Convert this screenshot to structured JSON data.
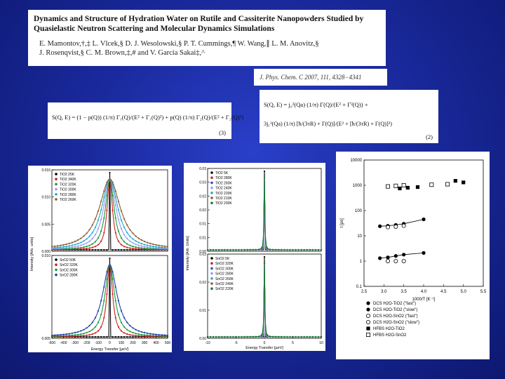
{
  "header": {
    "title": "Dynamics and Structure of Hydration Water on Rutile and Cassiterite Nanopowders Studied by Quasielastic Neutron Scattering and Molecular Dynamics Simulations",
    "authors_line1": "E. Mamontov,†,‡ L. Vlcek,§ D. J. Wesolowski,§ P. T. Cummings,¶ W. Wang,∥ L. M. Anovitz,§",
    "authors_line2": "J. Rosenqvist,§ C. M. Brown,‡,# and V. Garcia Sakai‡,^",
    "citation": "J. Phys. Chem. C 2007, 111, 4328−4341"
  },
  "equations": {
    "eq3_text": "S(Q, E) = (1 − p(Q)) (1/π) Γ₁(Q)/(E² + Γ₁(Q)²) + p(Q) (1/π) Γ₂(Q)/(E² + Γ₂(Q)²)",
    "eq3_number": "(3)",
    "eq2_line1": "S(Q, E) = j₀²(Qa) (1/π) Γ(Q)/(E² + Γ²(Q)) +",
    "eq2_line2": "3j₁²(Qa) (1/π) [ħ/(3τR) + Γ(Q)]/(E² + [ħ/(3τR) + Γ(Q)]²)",
    "eq2_number": "(2)"
  },
  "chart_data": [
    {
      "type": "line",
      "panel": "TiO2/SnO2 left",
      "xlabel": "Energy Transfer [µeV]",
      "ylabel": "Intensity [Arb. units]",
      "xticks": [
        -500,
        -400,
        -300,
        -200,
        -100,
        0,
        100,
        200,
        300,
        400,
        500
      ],
      "upper": {
        "ylim": [
          0,
          0.016
        ],
        "yticks": [
          "0.016",
          "0.010",
          "0.005",
          "0.000"
        ],
        "legend": [
          "TiO2 25K",
          "TiO2 340K",
          "TiO2 320K",
          "TiO2 300K",
          "TiO2 280K",
          "TiO2 260K"
        ],
        "colors": [
          "#000000",
          "#cc2222",
          "#1a9a3a",
          "#9999ff",
          "#22aacc",
          "#8b5a2b"
        ],
        "widths": [
          2,
          28,
          45,
          65,
          85,
          110
        ]
      },
      "lower": {
        "legend": [
          "SnO2 50K",
          "SnO2 320K",
          "SnO2 300K",
          "SnO2 280K"
        ],
        "colors": [
          "#000000",
          "#cc2222",
          "#1a9a3a",
          "#1e3fa8"
        ],
        "yticks": [
          "0.010",
          "0.005"
        ],
        "widths": [
          2,
          30,
          50,
          75
        ]
      }
    },
    {
      "type": "line",
      "panel": "TiO2/SnO2 middle",
      "xlabel": "Energy Transfer [µeV]",
      "ylabel": "Intensity [Arb. Units]",
      "xticks": [
        -10,
        -5,
        0,
        5,
        10
      ],
      "upper": {
        "yticks": [
          "0.03",
          "0.03",
          "0.02",
          "0.02",
          "0.01",
          "0.01",
          "0.00"
        ],
        "legend": [
          "TiO2 5K",
          "TiO2 280K",
          "TiO2 260K",
          "TiO2 240K",
          "TiO2 220K",
          "TiO2 210K",
          "TiO2 200K"
        ],
        "colors": [
          "#000000",
          "#cc2222",
          "#2a4fd0",
          "#9999ff",
          "#22aacc",
          "#8b5a2b",
          "#1a7a3a"
        ],
        "widths": [
          0.5,
          1.0,
          1.5,
          2.1,
          2.8,
          3.4,
          4.2
        ]
      },
      "lower": {
        "yticks": [
          "0.03",
          "0.02",
          "0.01",
          "0.00"
        ],
        "legend": [
          "SnO2 5K",
          "SnO2 320K",
          "SnO2 300K",
          "SnO2 280K",
          "SnO2 260K",
          "SnO2 240K",
          "SnO2 220K"
        ],
        "colors": [
          "#000000",
          "#cc2222",
          "#2a4fd0",
          "#9999ff",
          "#22aacc",
          "#8b5a2b",
          "#1a7a3a"
        ],
        "widths": [
          0.5,
          1.0,
          1.5,
          2.1,
          2.8,
          3.4,
          4.2
        ]
      }
    },
    {
      "type": "scatter",
      "panel": "Arrhenius",
      "xlabel": "1000/T [K⁻¹]",
      "ylabel": "τ [ps]",
      "xlim": [
        2.5,
        5.5
      ],
      "xticks": [
        "2.5",
        "3.0",
        "3.5",
        "4.0",
        "4.5",
        "5.0",
        "5.5"
      ],
      "ylim_log": [
        0.1,
        10000
      ],
      "yticks": [
        "10000",
        "1000",
        "100",
        "10",
        "1",
        "0.1"
      ],
      "series": [
        {
          "name": "DCS H2O-TiO2 (\"fast\")",
          "marker": "filled-circle",
          "x": [
            2.9,
            3.1,
            3.3,
            3.5,
            4.0
          ],
          "y": [
            1.3,
            1.4,
            1.6,
            1.8,
            2.1
          ]
        },
        {
          "name": "DCS H2O-TiO2 (\"slow\")",
          "marker": "filled-circle",
          "x": [
            2.9,
            3.1,
            3.3,
            3.5,
            4.0
          ],
          "y": [
            24,
            25,
            27,
            30,
            45
          ]
        },
        {
          "name": "DCS H2O-SnO2 (\"fast\")",
          "marker": "open-circle",
          "x": [
            3.1,
            3.3,
            3.5
          ],
          "y": [
            1.0,
            1.0,
            1.0
          ]
        },
        {
          "name": "DCS H2O-SnO2 (\"slow\")",
          "marker": "open-circle",
          "x": [
            3.1,
            3.3,
            3.5
          ],
          "y": [
            22,
            23,
            25
          ]
        },
        {
          "name": "HFBS H2O-TiO2",
          "marker": "filled-square",
          "x": [
            3.4,
            3.6,
            3.85,
            4.8,
            5.0
          ],
          "y": [
            750,
            800,
            850,
            1500,
            1300
          ]
        },
        {
          "name": "HFBS H2O-SnO2",
          "marker": "open-square",
          "x": [
            3.1,
            3.3,
            3.5,
            4.2,
            4.6
          ],
          "y": [
            900,
            950,
            1000,
            1050,
            1100
          ]
        }
      ]
    }
  ]
}
